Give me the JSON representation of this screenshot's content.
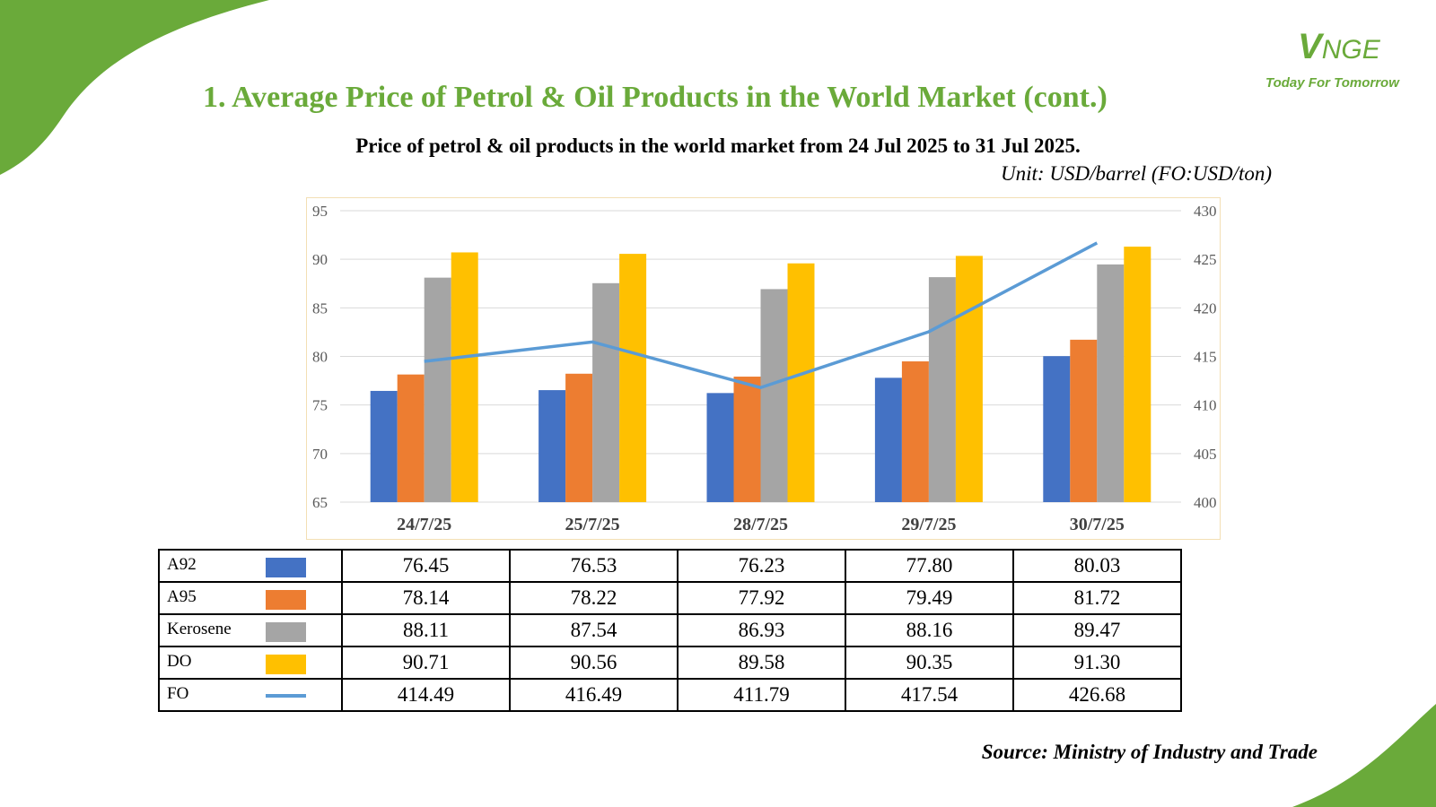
{
  "header": {
    "title": "1. Average Price of Petrol & Oil Products in the World Market (cont.)",
    "subtitle": "Price of petrol & oil products in the world market from 24 Jul 2025 to 31 Jul 2025.",
    "unit": "Unit: USD/barrel (FO:USD/ton)"
  },
  "logo": {
    "initial": "V",
    "name": "NGE",
    "tagline": "Today For Tomorrow"
  },
  "footer": {
    "source": "Source: Ministry of Industry and Trade"
  },
  "colors": {
    "brand_green": "#6aaa3a",
    "A92": "#4472c4",
    "A95": "#ed7d31",
    "Kerosene": "#a5a5a5",
    "DO": "#ffc000",
    "FO": "#5b9bd5"
  },
  "chart_data": {
    "type": "bar",
    "categories": [
      "24/7/25",
      "25/7/25",
      "28/7/25",
      "29/7/25",
      "30/7/25"
    ],
    "series": [
      {
        "name": "A92",
        "type": "bar",
        "axis": "left",
        "color": "#4472c4",
        "values": [
          76.45,
          76.53,
          76.23,
          77.8,
          80.03
        ]
      },
      {
        "name": "A95",
        "type": "bar",
        "axis": "left",
        "color": "#ed7d31",
        "values": [
          78.14,
          78.22,
          77.92,
          79.49,
          81.72
        ]
      },
      {
        "name": "Kerosene",
        "type": "bar",
        "axis": "left",
        "color": "#a5a5a5",
        "values": [
          88.11,
          87.54,
          86.93,
          88.16,
          89.47
        ]
      },
      {
        "name": "DO",
        "type": "bar",
        "axis": "left",
        "color": "#ffc000",
        "values": [
          90.71,
          90.56,
          89.58,
          90.35,
          91.3
        ]
      },
      {
        "name": "FO",
        "type": "line",
        "axis": "right",
        "color": "#5b9bd5",
        "values": [
          414.49,
          416.49,
          411.79,
          417.54,
          426.68
        ]
      }
    ],
    "ylim": [
      65,
      95
    ],
    "y_ticks": [
      "95",
      "90",
      "85",
      "80",
      "75",
      "70",
      "65"
    ],
    "y2lim": [
      400,
      430
    ],
    "y2_ticks": [
      "430",
      "425",
      "420",
      "415",
      "410",
      "405",
      "400"
    ],
    "grid": true,
    "legend": "data-table-below"
  },
  "table": {
    "rows": [
      {
        "label": "A92",
        "swatch": "bar",
        "color": "#4472c4",
        "values": [
          "76.45",
          "76.53",
          "76.23",
          "77.80",
          "80.03"
        ]
      },
      {
        "label": "A95",
        "swatch": "bar",
        "color": "#ed7d31",
        "values": [
          "78.14",
          "78.22",
          "77.92",
          "79.49",
          "81.72"
        ]
      },
      {
        "label": "Kerosene",
        "swatch": "bar",
        "color": "#a5a5a5",
        "values": [
          "88.11",
          "87.54",
          "86.93",
          "88.16",
          "89.47"
        ]
      },
      {
        "label": "DO",
        "swatch": "bar",
        "color": "#ffc000",
        "values": [
          "90.71",
          "90.56",
          "89.58",
          "90.35",
          "91.30"
        ]
      },
      {
        "label": "FO",
        "swatch": "line",
        "color": "#5b9bd5",
        "values": [
          "414.49",
          "416.49",
          "411.79",
          "417.54",
          "426.68"
        ]
      }
    ]
  }
}
